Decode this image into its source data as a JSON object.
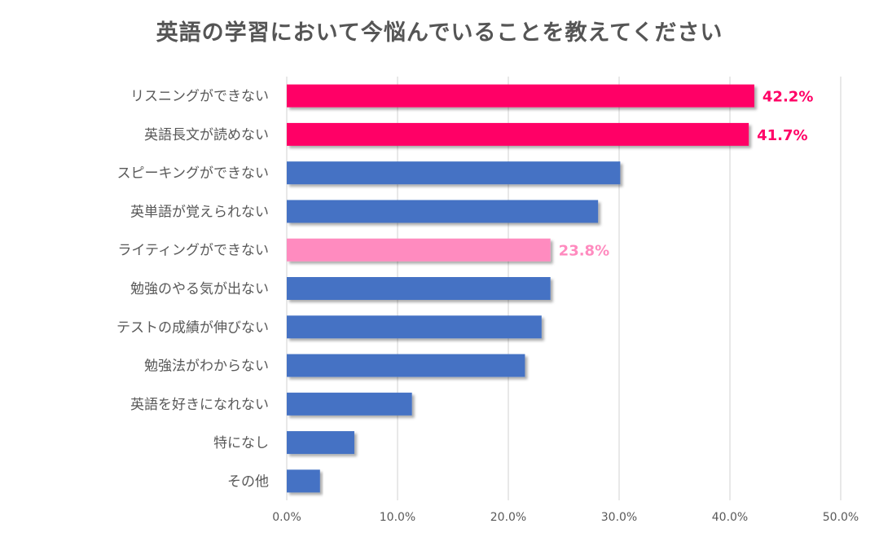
{
  "chart_data": {
    "type": "bar",
    "orientation": "horizontal",
    "title": "英語の学習において今悩んでいることを教えてください",
    "categories": [
      "リスニングができない",
      "英語長文が読めない",
      "スピーキングができない",
      "英単語が覚えられない",
      "ライティングができない",
      "勉強のやる気が出ない",
      "テストの成績が伸びない",
      "勉強法がわからない",
      "英語を好きになれない",
      "特になし",
      "その他"
    ],
    "values": [
      42.2,
      41.7,
      30.1,
      28.1,
      23.8,
      23.8,
      23.0,
      21.5,
      11.3,
      6.1,
      3.0
    ],
    "bar_colors": [
      "#ff0066",
      "#ff0066",
      "#4472c4",
      "#4472c4",
      "#ff8bbf",
      "#4472c4",
      "#4472c4",
      "#4472c4",
      "#4472c4",
      "#4472c4",
      "#4472c4"
    ],
    "data_labels": [
      {
        "index": 0,
        "text": "42.2%",
        "color": "#ff0066"
      },
      {
        "index": 1,
        "text": "41.7%",
        "color": "#ff0066"
      },
      {
        "index": 4,
        "text": "23.8%",
        "color": "#ff8bbf"
      }
    ],
    "xlim": [
      0,
      50
    ],
    "x_ticks": [
      0,
      10,
      20,
      30,
      40,
      50
    ],
    "x_tick_labels": [
      "0.0%",
      "10.0%",
      "20.0%",
      "30.0%",
      "40.0%",
      "50.0%"
    ],
    "grid": true,
    "xlabel": "",
    "ylabel": ""
  }
}
